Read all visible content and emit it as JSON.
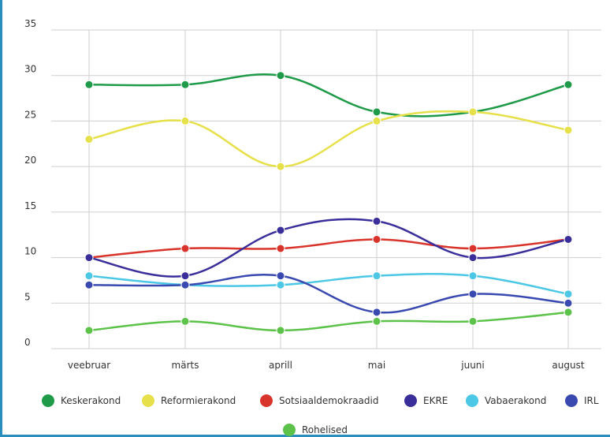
{
  "chart_data": {
    "type": "line",
    "title": "",
    "xlabel": "",
    "ylabel": "",
    "categories": [
      "veebruar",
      "märts",
      "aprill",
      "mai",
      "juuni",
      "august"
    ],
    "ylim": [
      0,
      35
    ],
    "yticks": [
      0,
      5,
      10,
      15,
      20,
      25,
      30,
      35
    ],
    "grid": true,
    "legend_position": "bottom",
    "series": [
      {
        "name": "Keskerakond",
        "color": "#1f9a48",
        "values": [
          29,
          29,
          30,
          26,
          26,
          29
        ]
      },
      {
        "name": "Reformierakond",
        "color": "#e6e04a",
        "values": [
          23,
          25,
          20,
          25,
          26,
          24
        ]
      },
      {
        "name": "Sotsiaaldemokraadid",
        "color": "#d9342b",
        "values": [
          10,
          11,
          11,
          12,
          11,
          12
        ]
      },
      {
        "name": "EKRE",
        "color": "#3a2f9a",
        "values": [
          10,
          8,
          13,
          14,
          10,
          12
        ]
      },
      {
        "name": "Vabaerakond",
        "color": "#4cc7e6",
        "values": [
          8,
          7,
          7,
          8,
          8,
          6
        ]
      },
      {
        "name": "IRL",
        "color": "#3949b0",
        "values": [
          7,
          7,
          8,
          4,
          6,
          5
        ]
      },
      {
        "name": "Rohelised",
        "color": "#5cc24a",
        "values": [
          2,
          3,
          2,
          3,
          3,
          4
        ]
      }
    ]
  }
}
